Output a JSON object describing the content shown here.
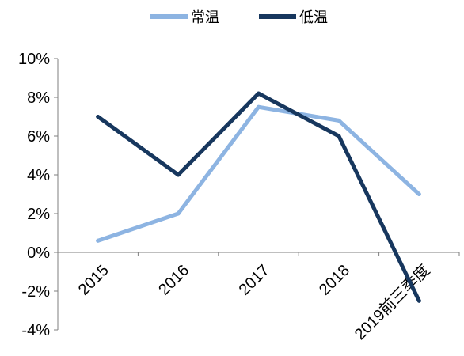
{
  "chart_data": {
    "type": "line",
    "categories": [
      "2015",
      "2016",
      "2017",
      "2018",
      "2019前三季度"
    ],
    "series": [
      {
        "name": "常温",
        "values": [
          0.6,
          2.0,
          7.5,
          6.8,
          3.0
        ],
        "color": "#8db4e2"
      },
      {
        "name": "低温",
        "values": [
          7.0,
          4.0,
          8.2,
          6.0,
          -2.5
        ],
        "color": "#17375e"
      }
    ],
    "y_ticks": [
      "10%",
      "8%",
      "6%",
      "4%",
      "2%",
      "0%",
      "-2%",
      "-4%"
    ],
    "ylim": [
      -4,
      10
    ],
    "ystep": 2,
    "legend_position": "top-center",
    "grid": false
  }
}
